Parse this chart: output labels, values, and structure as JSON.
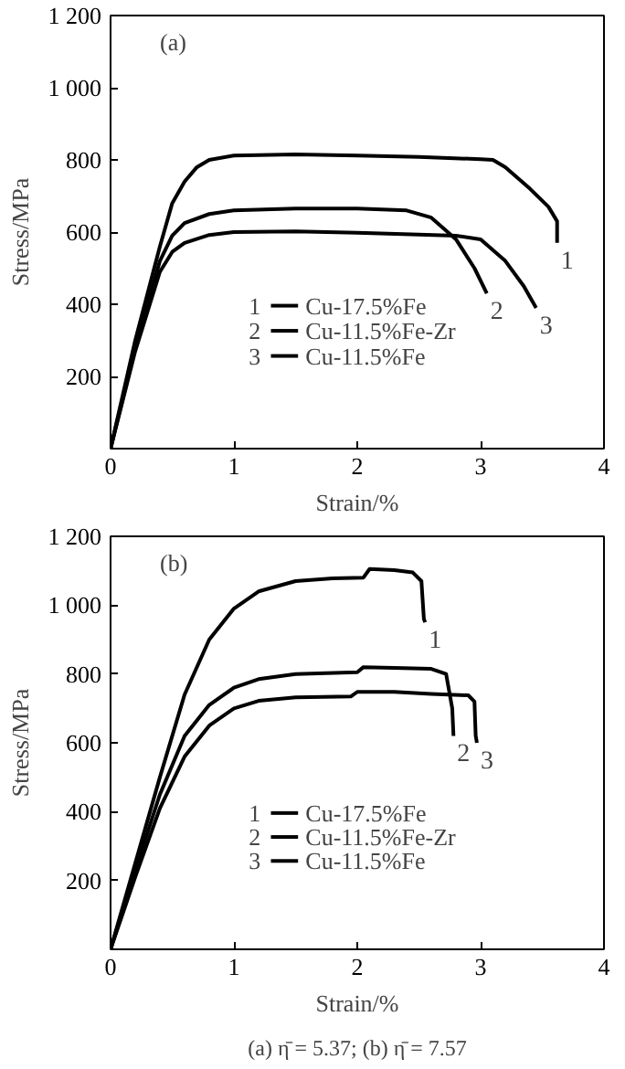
{
  "chart_data": [
    {
      "type": "line",
      "title": "(a)",
      "xlabel": "Strain/%",
      "ylabel": "Stress/MPa",
      "xlim": [
        0,
        4
      ],
      "ylim": [
        0,
        1200
      ],
      "xticks": [
        0,
        1,
        2,
        3,
        4
      ],
      "yticks": [
        {
          "value": 0,
          "label": null
        },
        200,
        400,
        600,
        800,
        {
          "value": 1000,
          "label": "1 000"
        },
        {
          "value": 1200,
          "label": "1 200"
        }
      ],
      "legend": "bottom",
      "series": [
        {
          "name": "Cu-17.5%Fe",
          "color": "#000000",
          "x": [
            0,
            0.2,
            0.4,
            0.5,
            0.6,
            0.7,
            0.8,
            1.0,
            1.5,
            2.0,
            2.5,
            3.0,
            3.1,
            3.2,
            3.4,
            3.55,
            3.62,
            3.62
          ],
          "values": [
            0,
            300,
            560,
            680,
            740,
            780,
            800,
            812,
            815,
            812,
            808,
            802,
            800,
            780,
            720,
            670,
            630,
            570
          ]
        },
        {
          "name": "Cu-11.5%Fe-Zr",
          "color": "#000000",
          "x": [
            0,
            0.2,
            0.4,
            0.5,
            0.6,
            0.8,
            1.0,
            1.5,
            2.0,
            2.4,
            2.6,
            2.8,
            2.95,
            3.05
          ],
          "values": [
            0,
            280,
            520,
            590,
            625,
            650,
            660,
            665,
            665,
            660,
            640,
            580,
            500,
            430
          ]
        },
        {
          "name": "Cu-11.5%Fe",
          "color": "#000000",
          "x": [
            0,
            0.2,
            0.4,
            0.5,
            0.6,
            0.8,
            1.0,
            1.5,
            2.0,
            2.5,
            2.8,
            3.0,
            3.2,
            3.35,
            3.45
          ],
          "values": [
            0,
            270,
            490,
            545,
            570,
            592,
            600,
            602,
            598,
            593,
            590,
            580,
            520,
            450,
            390
          ]
        }
      ],
      "annotations": [
        {
          "text": "1",
          "x": 3.62,
          "y": 570
        },
        {
          "text": "2",
          "x": 3.05,
          "y": 430
        },
        {
          "text": "3",
          "x": 3.45,
          "y": 390
        }
      ]
    },
    {
      "type": "line",
      "title": "(b)",
      "xlabel": "Strain/%",
      "ylabel": "Stress/MPa",
      "xlim": [
        0,
        4
      ],
      "ylim": [
        0,
        1200
      ],
      "xticks": [
        0,
        1,
        2,
        3,
        4
      ],
      "yticks": [
        {
          "value": 0,
          "label": null
        },
        200,
        400,
        600,
        800,
        {
          "value": 1000,
          "label": "1 000"
        },
        {
          "value": 1200,
          "label": "1 200"
        }
      ],
      "legend": "bottom",
      "series": [
        {
          "name": "Cu-17.5%Fe",
          "color": "#000000",
          "x": [
            0,
            0.2,
            0.4,
            0.6,
            0.8,
            1.0,
            1.2,
            1.5,
            1.8,
            2.05,
            2.1,
            2.3,
            2.45,
            2.52,
            2.54,
            2.55
          ],
          "values": [
            0,
            250,
            500,
            740,
            900,
            990,
            1040,
            1070,
            1078,
            1080,
            1105,
            1102,
            1095,
            1070,
            960,
            950
          ]
        },
        {
          "name": "Cu-11.5%Fe-Zr",
          "color": "#000000",
          "x": [
            0,
            0.2,
            0.4,
            0.6,
            0.8,
            1.0,
            1.2,
            1.5,
            2.0,
            2.05,
            2.3,
            2.6,
            2.72,
            2.77,
            2.78
          ],
          "values": [
            0,
            230,
            450,
            620,
            710,
            760,
            785,
            800,
            805,
            820,
            818,
            815,
            800,
            700,
            620
          ]
        },
        {
          "name": "Cu-11.5%Fe",
          "color": "#000000",
          "x": [
            0,
            0.2,
            0.4,
            0.6,
            0.8,
            1.0,
            1.2,
            1.5,
            1.95,
            2.0,
            2.3,
            2.6,
            2.9,
            2.95,
            2.96,
            2.97
          ],
          "values": [
            0,
            210,
            410,
            560,
            650,
            700,
            722,
            732,
            735,
            748,
            748,
            742,
            738,
            720,
            620,
            600
          ]
        }
      ],
      "annotations": [
        {
          "text": "1",
          "x": 2.55,
          "y": 950
        },
        {
          "text": "2",
          "x": 2.78,
          "y": 620
        },
        {
          "text": "3",
          "x": 2.97,
          "y": 600
        },
        "(a) η̄ = 5.37; (b) η̄ = 7.57"
      ]
    }
  ]
}
